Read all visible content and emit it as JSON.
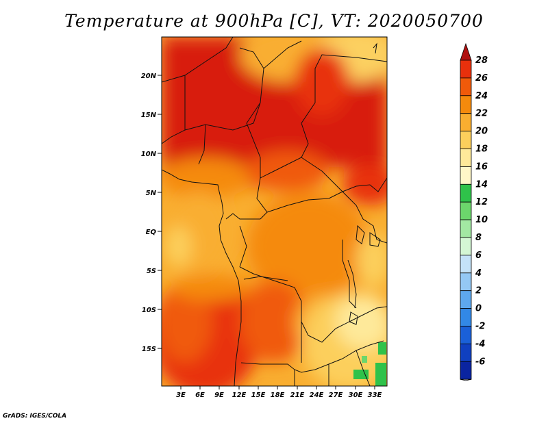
{
  "title": "Temperature at 900hPa [C], VT: 2020050700",
  "credit": "GrADS: IGES/COLA",
  "map": {
    "lat_ticks": [
      "20N",
      "15N",
      "10N",
      "5N",
      "EQ",
      "5S",
      "10S",
      "15S"
    ],
    "lon_ticks": [
      "3E",
      "6E",
      "9E",
      "12E",
      "15E",
      "18E",
      "21E",
      "24E",
      "27E",
      "30E",
      "33E"
    ]
  },
  "colorbar": {
    "labels": [
      "28",
      "26",
      "24",
      "22",
      "20",
      "18",
      "16",
      "14",
      "12",
      "10",
      "8",
      "6",
      "4",
      "2",
      "0",
      "-2",
      "-4",
      "-6"
    ],
    "colors": [
      "#b01010",
      "#e8300c",
      "#f05a0a",
      "#f58a0c",
      "#f9ae30",
      "#fccf5c",
      "#fee99a",
      "#fff7c8",
      "#2fc24a",
      "#6cd66c",
      "#a3e8a3",
      "#d4f7d4",
      "#c4e2f8",
      "#94c8f4",
      "#5ea8ee",
      "#3288e6",
      "#1a60d8",
      "#1040c0",
      "#0a24a0",
      "#081070"
    ]
  }
}
